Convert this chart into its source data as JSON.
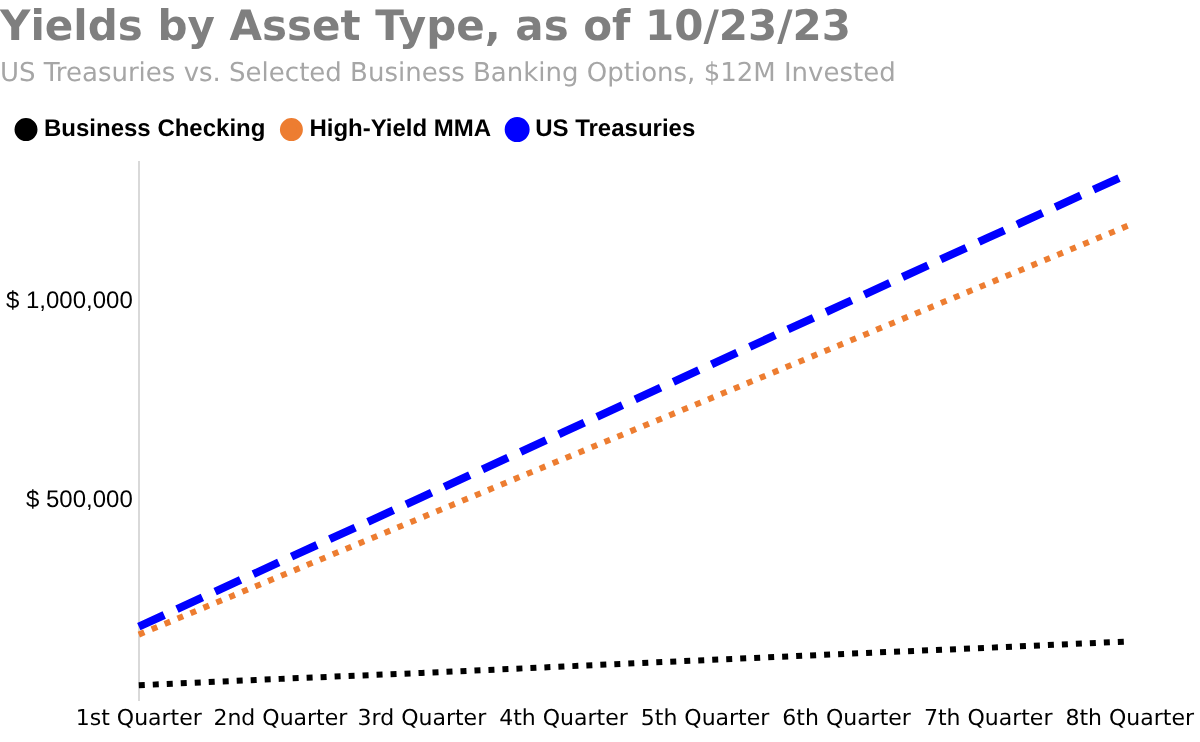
{
  "chart_data": {
    "type": "line",
    "title": "Yields by Asset Type, as of 10/23/23",
    "subtitle": "US Treasuries vs. Selected Business Banking Options, $12M Invested",
    "categories": [
      "1st Quarter",
      "2nd Quarter",
      "3rd Quarter",
      "4th Quarter",
      "5th Quarter",
      "6th Quarter",
      "7th Quarter",
      "8th Quarter"
    ],
    "series": [
      {
        "name": "Business Checking",
        "color": "#000000",
        "line_style": "dotted",
        "values": [
          36000,
          52000,
          67000,
          83000,
          99000,
          115000,
          130000,
          146000
        ]
      },
      {
        "name": "High-Yield MMA",
        "color": "#ed7d31",
        "line_style": "dotted",
        "values": [
          163000,
          310000,
          457000,
          604000,
          750000,
          897000,
          1044000,
          1191000
        ]
      },
      {
        "name": "US Treasuries",
        "color": "#0000ff",
        "line_style": "dashed",
        "values": [
          183000,
          346000,
          508000,
          671000,
          834000,
          996000,
          1159000,
          1321000
        ]
      }
    ],
    "ylim": [
      0,
      1350000
    ],
    "yticks": [
      {
        "value": 500000,
        "label": "$ 500,000"
      },
      {
        "value": 1000000,
        "label": "$ 1,000,000"
      }
    ],
    "grid": false,
    "legend": "top left",
    "marker": "none"
  }
}
